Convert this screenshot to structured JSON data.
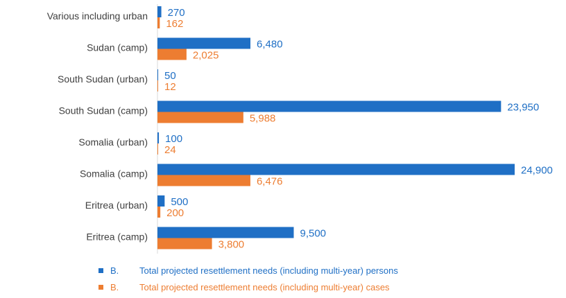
{
  "chart_data": {
    "type": "bar",
    "orientation": "horizontal",
    "categories": [
      "Various including urban",
      "Sudan (camp)",
      "South Sudan (urban)",
      "South Sudan (camp)",
      "Somalia (urban)",
      "Somalia (camp)",
      "Eritrea (urban)",
      "Eritrea (camp)"
    ],
    "series": [
      {
        "name": "Total projected resettlement needs (including multi-year) persons",
        "prefix": "B.",
        "color": "#1f6fc5",
        "values": [
          270,
          6480,
          50,
          23950,
          100,
          24900,
          500,
          9500
        ],
        "labels": [
          "270",
          "6,480",
          "50",
          "23,950",
          "100",
          "24,900",
          "500",
          "9,500"
        ]
      },
      {
        "name": "Total projected resettlement needs (including multi-year) cases",
        "prefix": "B.",
        "color": "#ed7d31",
        "values": [
          162,
          2025,
          12,
          5988,
          24,
          6476,
          200,
          3800
        ],
        "labels": [
          "162",
          "2,025",
          "12",
          "5,988",
          "24",
          "6,476",
          "200",
          "3,800"
        ]
      }
    ],
    "legend": "bottom-left",
    "grid": false,
    "xlim": [
      0,
      24900
    ]
  }
}
